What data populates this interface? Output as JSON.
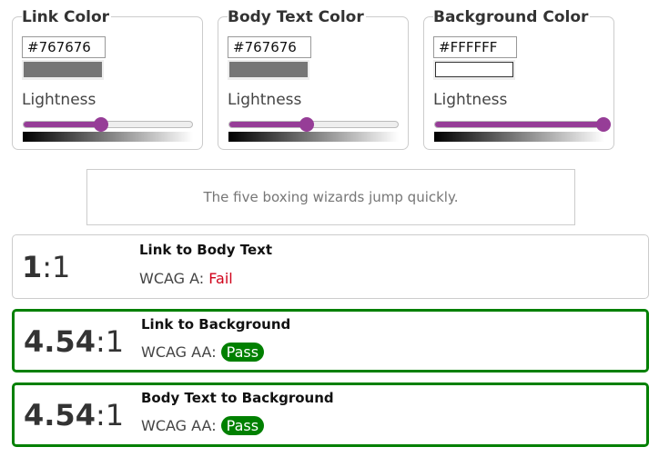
{
  "pickers": [
    {
      "legend": "Link Color",
      "hex": "#767676",
      "lightness_label": "Lightness",
      "lightness_percent": 46,
      "swatch": "#767676"
    },
    {
      "legend": "Body Text Color",
      "hex": "#767676",
      "lightness_label": "Lightness",
      "lightness_percent": 46,
      "swatch": "#767676"
    },
    {
      "legend": "Background Color",
      "hex": "#FFFFFF",
      "lightness_label": "Lightness",
      "lightness_percent": 100,
      "swatch": "#FFFFFF"
    }
  ],
  "sample_text": "The five boxing wizards jump quickly.",
  "results": [
    {
      "ratio_bold": "1",
      "ratio_rest": ":1",
      "title": "Link to Body Text",
      "level": "WCAG A: ",
      "status": "Fail",
      "pass": false
    },
    {
      "ratio_bold": "4.54",
      "ratio_rest": ":1",
      "title": "Link to Background",
      "level": "WCAG AA: ",
      "status": "Pass",
      "pass": true
    },
    {
      "ratio_bold": "4.54",
      "ratio_rest": ":1",
      "title": "Body Text to Background",
      "level": "WCAG AA: ",
      "status": "Pass",
      "pass": true
    }
  ],
  "colors": {
    "accent": "#963d97",
    "pass": "#008000",
    "fail": "#d0021b"
  }
}
